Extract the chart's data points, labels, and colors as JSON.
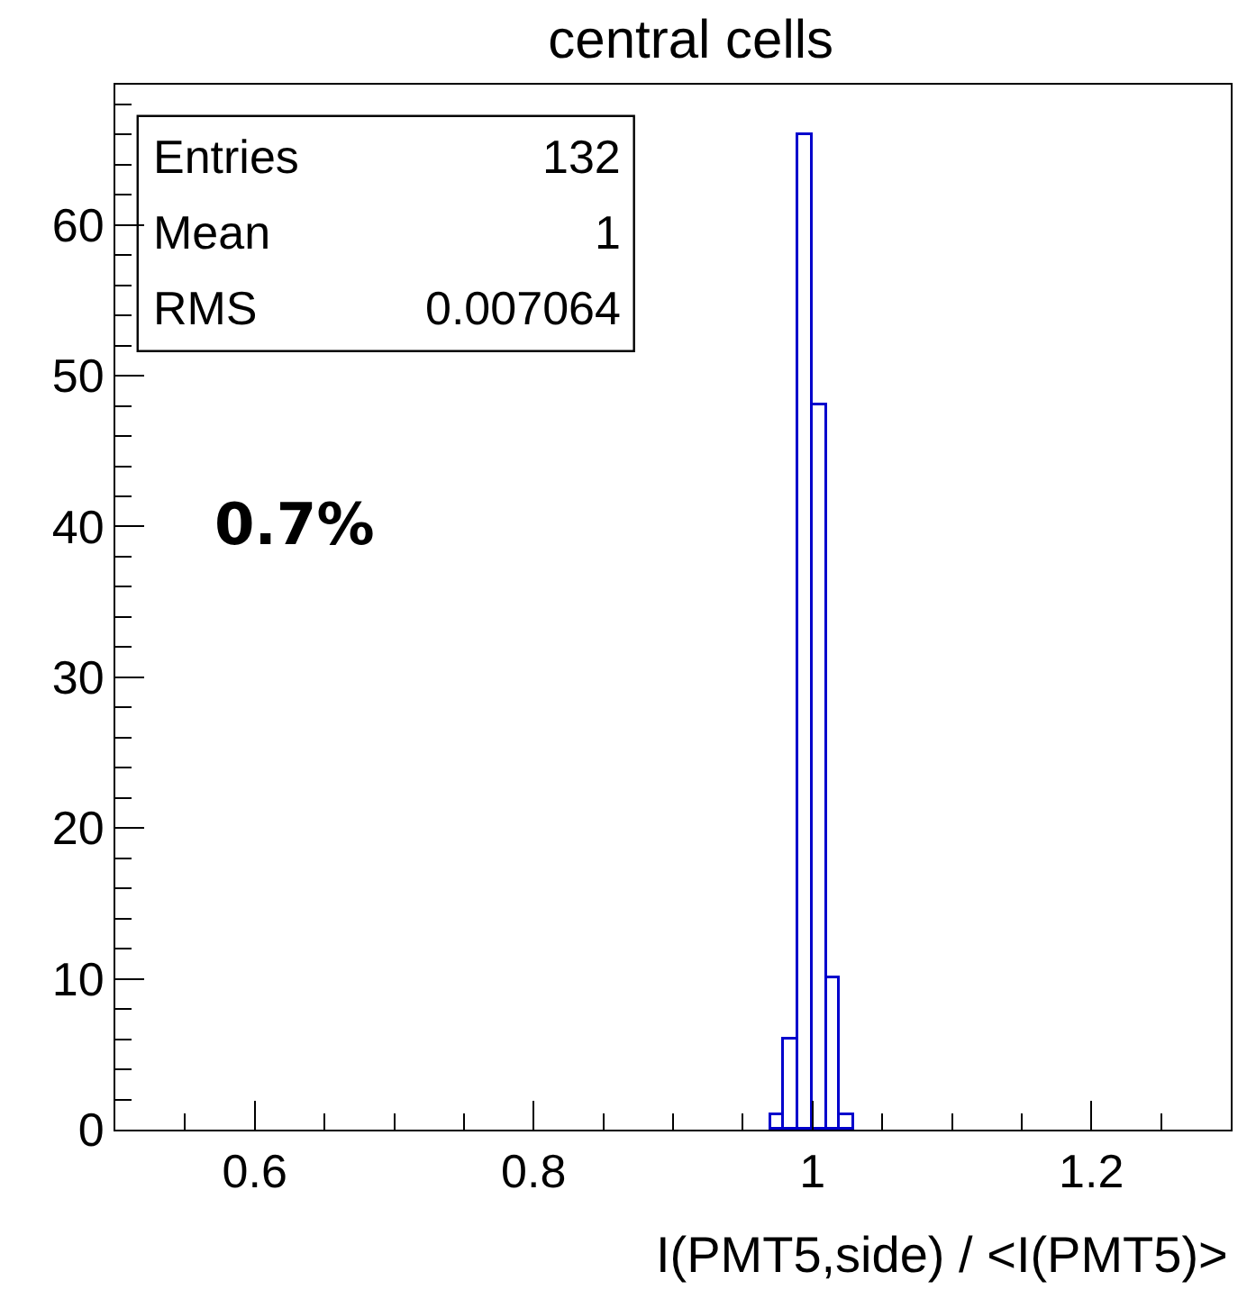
{
  "chart_data": {
    "type": "histogram",
    "title": "central cells",
    "xlabel": "I(PMT5,side) / <I(PMT5)>",
    "bins": [
      0.97,
      0.98,
      0.99,
      1.0,
      1.01,
      1.02,
      1.03
    ],
    "values": [
      1,
      6,
      66,
      48,
      10,
      1
    ],
    "color": "#0000cc",
    "xlim": [
      0.5,
      1.3
    ],
    "xticks": [
      {
        "value": 0.55,
        "label": null
      },
      0.6,
      {
        "value": 0.65,
        "label": null
      },
      {
        "value": 0.7,
        "label": null
      },
      {
        "value": 0.75,
        "label": null
      },
      0.8,
      {
        "value": 0.85,
        "label": null
      },
      {
        "value": 0.9,
        "label": null
      },
      {
        "value": 0.95,
        "label": null
      },
      1,
      {
        "value": 1.05,
        "label": null
      },
      {
        "value": 1.1,
        "label": null
      },
      {
        "value": 1.15,
        "label": null
      },
      1.2,
      {
        "value": 1.25,
        "label": null
      }
    ],
    "ylim": [
      0,
      69.3
    ],
    "yticks": [
      0,
      {
        "value": 2,
        "label": null
      },
      {
        "value": 4,
        "label": null
      },
      {
        "value": 6,
        "label": null
      },
      {
        "value": 8,
        "label": null
      },
      10,
      {
        "value": 12,
        "label": null
      },
      {
        "value": 14,
        "label": null
      },
      {
        "value": 16,
        "label": null
      },
      {
        "value": 18,
        "label": null
      },
      20,
      {
        "value": 22,
        "label": null
      },
      {
        "value": 24,
        "label": null
      },
      {
        "value": 26,
        "label": null
      },
      {
        "value": 28,
        "label": null
      },
      30,
      {
        "value": 32,
        "label": null
      },
      {
        "value": 34,
        "label": null
      },
      {
        "value": 36,
        "label": null
      },
      {
        "value": 38,
        "label": null
      },
      40,
      {
        "value": 42,
        "label": null
      },
      {
        "value": 44,
        "label": null
      },
      {
        "value": 46,
        "label": null
      },
      {
        "value": 48,
        "label": null
      },
      50,
      {
        "value": 52,
        "label": null
      },
      {
        "value": 54,
        "label": null
      },
      {
        "value": 56,
        "label": null
      },
      {
        "value": 58,
        "label": null
      },
      60,
      {
        "value": 62,
        "label": null
      },
      {
        "value": 64,
        "label": null
      },
      {
        "value": 66,
        "label": null
      },
      {
        "value": 68,
        "label": null
      }
    ],
    "grid": false,
    "annotations": [
      "Entries",
      "132",
      "Mean",
      "1",
      "RMS",
      "0.007064",
      "0.7%"
    ]
  }
}
